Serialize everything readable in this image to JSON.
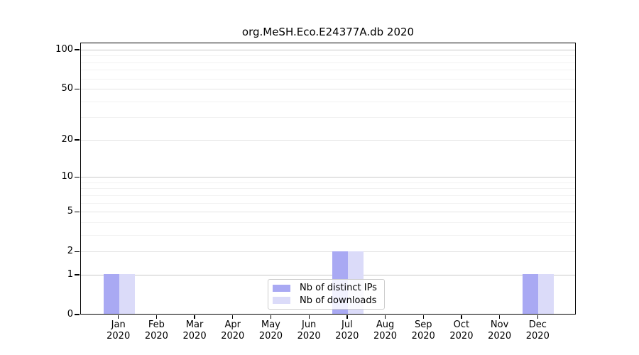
{
  "chart_data": {
    "type": "bar",
    "title": "org.MeSH.Eco.E24377A.db 2020",
    "categories": [
      "Jan 2020",
      "Feb 2020",
      "Mar 2020",
      "Apr 2020",
      "May 2020",
      "Jun 2020",
      "Jul 2020",
      "Aug 2020",
      "Sep 2020",
      "Oct 2020",
      "Nov 2020",
      "Dec 2020"
    ],
    "series": [
      {
        "name": "Nb of distinct IPs",
        "color": "#a9a9f3",
        "values": [
          1,
          0,
          0,
          0,
          0,
          0,
          2,
          0,
          0,
          0,
          0,
          1
        ]
      },
      {
        "name": "Nb of downloads",
        "color": "#dbdbf9",
        "values": [
          1,
          0,
          0,
          0,
          0,
          0,
          2,
          0,
          0,
          0,
          0,
          1
        ]
      }
    ],
    "yscale": "log1p",
    "ylim": [
      0,
      113
    ],
    "yticks": [
      0,
      1,
      2,
      5,
      10,
      20,
      50,
      100
    ],
    "yticks_minor": [
      3,
      4,
      6,
      7,
      8,
      9,
      30,
      40,
      60,
      70,
      80,
      90
    ],
    "grid": "horizontal",
    "legend_position": "bottom-center",
    "colors": {
      "grid_decade": "#c8c8c8",
      "grid_labeled": "#e4e4e4",
      "grid_minor": "#f2f2f2",
      "axis": "#000000",
      "legend_border": "#cccccc",
      "background": "#ffffff"
    }
  }
}
